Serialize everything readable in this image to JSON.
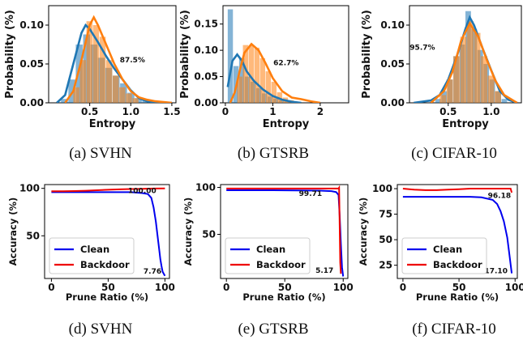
{
  "chart_data": [
    {
      "type": "histogram",
      "caption": "(a) SVHN",
      "xlabel": "Entropy",
      "ylabel": "Probability (%)",
      "xlim": [
        0.0,
        1.55
      ],
      "ylim": [
        0,
        0.125
      ],
      "xticks": [
        0.5,
        1.0,
        1.5
      ],
      "xtick_labels": [
        "0.5",
        "1.0",
        "1.5"
      ],
      "yticks": [
        0.0,
        0.05,
        0.1
      ],
      "ytick_labels": [
        "0.00",
        "0.05",
        "0.10"
      ],
      "annotation": {
        "text": "87.5%",
        "x": 1.02,
        "y": 0.052
      },
      "series": [
        {
          "color": "#1f77b4",
          "bins": [
            [
              0.15,
              0.24,
              0.005
            ],
            [
              0.24,
              0.33,
              0.03
            ],
            [
              0.33,
              0.42,
              0.075
            ],
            [
              0.42,
              0.51,
              0.088
            ],
            [
              0.51,
              0.6,
              0.075
            ],
            [
              0.6,
              0.69,
              0.058
            ],
            [
              0.69,
              0.78,
              0.045
            ],
            [
              0.78,
              0.87,
              0.035
            ],
            [
              0.87,
              0.96,
              0.025
            ],
            [
              0.96,
              1.05,
              0.013
            ],
            [
              1.05,
              1.14,
              0.006
            ],
            [
              1.14,
              1.23,
              0.003
            ]
          ],
          "kde": [
            [
              0.1,
              0.0
            ],
            [
              0.2,
              0.01
            ],
            [
              0.3,
              0.05
            ],
            [
              0.4,
              0.09
            ],
            [
              0.45,
              0.1
            ],
            [
              0.5,
              0.095
            ],
            [
              0.6,
              0.078
            ],
            [
              0.7,
              0.06
            ],
            [
              0.8,
              0.044
            ],
            [
              0.9,
              0.03
            ],
            [
              1.0,
              0.016
            ],
            [
              1.1,
              0.006
            ],
            [
              1.2,
              0.002
            ],
            [
              1.3,
              0.0005
            ],
            [
              1.5,
              0.0
            ]
          ]
        },
        {
          "color": "#ff7f0e",
          "bins": [
            [
              0.3,
              0.38,
              0.02
            ],
            [
              0.38,
              0.46,
              0.055
            ],
            [
              0.46,
              0.54,
              0.105
            ],
            [
              0.54,
              0.62,
              0.1
            ],
            [
              0.62,
              0.7,
              0.085
            ],
            [
              0.7,
              0.78,
              0.055
            ],
            [
              0.78,
              0.86,
              0.035
            ],
            [
              0.86,
              0.94,
              0.02
            ],
            [
              0.94,
              1.02,
              0.012
            ],
            [
              1.02,
              1.1,
              0.006
            ]
          ],
          "kde": [
            [
              0.2,
              0.0
            ],
            [
              0.3,
              0.015
            ],
            [
              0.4,
              0.055
            ],
            [
              0.5,
              0.1
            ],
            [
              0.55,
              0.11
            ],
            [
              0.6,
              0.1
            ],
            [
              0.7,
              0.075
            ],
            [
              0.8,
              0.05
            ],
            [
              0.9,
              0.03
            ],
            [
              1.0,
              0.015
            ],
            [
              1.1,
              0.007
            ],
            [
              1.2,
              0.004
            ],
            [
              1.3,
              0.002
            ],
            [
              1.5,
              0.0
            ]
          ]
        }
      ]
    },
    {
      "type": "histogram",
      "caption": "(b) GTSRB",
      "xlabel": "Entropy",
      "ylabel": "Probability (%)",
      "xlim": [
        -0.05,
        2.6
      ],
      "ylim": [
        0,
        0.185
      ],
      "xticks": [
        0,
        1,
        2
      ],
      "xtick_labels": [
        "0",
        "1",
        "2"
      ],
      "yticks": [
        0.0,
        0.05,
        0.1,
        0.15
      ],
      "ytick_labels": [
        "0.00",
        "0.05",
        "0.10",
        "0.15"
      ],
      "annotation": {
        "text": "62.7%",
        "x": 1.28,
        "y": 0.072
      },
      "series": [
        {
          "color": "#1f77b4",
          "bins": [
            [
              0.05,
              0.17,
              0.178
            ],
            [
              0.17,
              0.29,
              0.07
            ],
            [
              0.29,
              0.41,
              0.085
            ],
            [
              0.41,
              0.53,
              0.05
            ],
            [
              0.53,
              0.65,
              0.04
            ],
            [
              0.65,
              0.77,
              0.028
            ],
            [
              0.77,
              0.89,
              0.018
            ],
            [
              0.89,
              1.01,
              0.012
            ],
            [
              1.01,
              1.13,
              0.008
            ],
            [
              1.13,
              1.25,
              0.005
            ],
            [
              1.25,
              1.37,
              0.003
            ]
          ],
          "kde": [
            [
              0.05,
              0.03
            ],
            [
              0.15,
              0.08
            ],
            [
              0.25,
              0.092
            ],
            [
              0.35,
              0.08
            ],
            [
              0.45,
              0.06
            ],
            [
              0.6,
              0.042
            ],
            [
              0.8,
              0.025
            ],
            [
              1.0,
              0.013
            ],
            [
              1.2,
              0.006
            ],
            [
              1.4,
              0.002
            ],
            [
              1.6,
              0.0
            ]
          ]
        },
        {
          "color": "#ff7f0e",
          "bins": [
            [
              0.25,
              0.37,
              0.05
            ],
            [
              0.37,
              0.49,
              0.11
            ],
            [
              0.49,
              0.61,
              0.11
            ],
            [
              0.61,
              0.73,
              0.105
            ],
            [
              0.73,
              0.85,
              0.085
            ],
            [
              0.85,
              0.97,
              0.06
            ],
            [
              0.97,
              1.09,
              0.04
            ],
            [
              1.09,
              1.21,
              0.02
            ],
            [
              1.21,
              1.33,
              0.01
            ],
            [
              1.33,
              1.45,
              0.005
            ]
          ],
          "kde": [
            [
              0.1,
              0.0
            ],
            [
              0.2,
              0.02
            ],
            [
              0.3,
              0.06
            ],
            [
              0.4,
              0.095
            ],
            [
              0.55,
              0.112
            ],
            [
              0.7,
              0.1
            ],
            [
              0.85,
              0.075
            ],
            [
              1.0,
              0.047
            ],
            [
              1.2,
              0.022
            ],
            [
              1.4,
              0.01
            ],
            [
              1.6,
              0.007
            ],
            [
              1.8,
              0.003
            ],
            [
              2.0,
              0.0
            ]
          ]
        }
      ]
    },
    {
      "type": "histogram",
      "caption": "(c) CIFAR-10",
      "xlabel": "Entropy",
      "ylabel": "Probability (%)",
      "xlim": [
        0.05,
        1.35
      ],
      "ylim": [
        0,
        0.125
      ],
      "xticks": [
        0.5,
        1.0
      ],
      "xtick_labels": [
        "0.5",
        "1.0"
      ],
      "yticks": [
        0.0,
        0.05,
        0.1
      ],
      "ytick_labels": [
        "0.00",
        "0.05",
        "0.10"
      ],
      "annotation": {
        "text": "95.7%",
        "x": 0.2,
        "y": 0.068
      },
      "series": [
        {
          "color": "#1f77b4",
          "bins": [
            [
              0.35,
              0.42,
              0.005
            ],
            [
              0.42,
              0.49,
              0.015
            ],
            [
              0.49,
              0.56,
              0.03
            ],
            [
              0.56,
              0.63,
              0.06
            ],
            [
              0.63,
              0.7,
              0.075
            ],
            [
              0.7,
              0.77,
              0.118
            ],
            [
              0.77,
              0.84,
              0.095
            ],
            [
              0.84,
              0.91,
              0.068
            ],
            [
              0.91,
              0.98,
              0.05
            ],
            [
              0.98,
              1.05,
              0.03
            ],
            [
              1.05,
              1.12,
              0.015
            ],
            [
              1.12,
              1.19,
              0.005
            ]
          ],
          "kde": [
            [
              0.1,
              0.0
            ],
            [
              0.3,
              0.003
            ],
            [
              0.4,
              0.01
            ],
            [
              0.5,
              0.03
            ],
            [
              0.6,
              0.06
            ],
            [
              0.7,
              0.095
            ],
            [
              0.75,
              0.11
            ],
            [
              0.8,
              0.1
            ],
            [
              0.9,
              0.07
            ],
            [
              1.0,
              0.042
            ],
            [
              1.1,
              0.015
            ],
            [
              1.2,
              0.004
            ],
            [
              1.3,
              0.0
            ]
          ]
        },
        {
          "color": "#ff7f0e",
          "bins": [
            [
              0.4,
              0.48,
              0.01
            ],
            [
              0.48,
              0.56,
              0.03
            ],
            [
              0.56,
              0.64,
              0.06
            ],
            [
              0.64,
              0.72,
              0.085
            ],
            [
              0.72,
              0.8,
              0.105
            ],
            [
              0.8,
              0.88,
              0.09
            ],
            [
              0.88,
              0.96,
              0.06
            ],
            [
              0.96,
              1.04,
              0.035
            ],
            [
              1.04,
              1.12,
              0.015
            ]
          ],
          "kde": [
            [
              0.3,
              0.0
            ],
            [
              0.45,
              0.015
            ],
            [
              0.55,
              0.04
            ],
            [
              0.65,
              0.08
            ],
            [
              0.75,
              0.102
            ],
            [
              0.85,
              0.085
            ],
            [
              0.95,
              0.055
            ],
            [
              1.05,
              0.028
            ],
            [
              1.15,
              0.01
            ],
            [
              1.3,
              0.0
            ]
          ]
        }
      ]
    },
    {
      "type": "line",
      "caption": "(d) SVHN",
      "xlabel": "Prune Ratio (%)",
      "ylabel": "Accuracy (%)",
      "xlim": [
        -6,
        104
      ],
      "ylim": [
        5,
        104
      ],
      "xticks": [
        0,
        50,
        100
      ],
      "yticks": [
        50,
        100
      ],
      "legend": {
        "position": "lower-left",
        "entries": [
          "Clean",
          "Backdoor"
        ]
      },
      "annotations": [
        {
          "text": "100.00",
          "x": 80,
          "y": 95
        },
        {
          "text": "7.76",
          "x": 89,
          "y": 10
        }
      ],
      "series": [
        {
          "name": "Clean",
          "color": "#0000ee",
          "x": [
            0,
            10,
            20,
            30,
            40,
            50,
            60,
            70,
            80,
            85,
            88,
            90,
            92,
            94,
            95,
            96,
            97,
            98,
            100
          ],
          "y": [
            96,
            96,
            96,
            96,
            96,
            96,
            96,
            96,
            95,
            94,
            90,
            80,
            65,
            45,
            35,
            25,
            18,
            12,
            7.76
          ]
        },
        {
          "name": "Backdoor",
          "color": "#ee0000",
          "x": [
            0,
            10,
            20,
            30,
            40,
            50,
            60,
            70,
            80,
            90,
            100
          ],
          "y": [
            97,
            97,
            97.2,
            97.5,
            98,
            98.5,
            99,
            99.3,
            99.6,
            99.8,
            100
          ]
        }
      ]
    },
    {
      "type": "line",
      "caption": "(e) GTSRB",
      "xlabel": "Prune Ratio (%)",
      "ylabel": "Accuracy (%)",
      "xlim": [
        -5,
        104
      ],
      "ylim": [
        3,
        103
      ],
      "xticks": [
        0,
        50,
        100
      ],
      "yticks": [
        50,
        100
      ],
      "legend": {
        "position": "lower-left",
        "entries": [
          "Clean",
          "Backdoor"
        ]
      },
      "annotations": [
        {
          "text": "99.71",
          "x": 72,
          "y": 91
        },
        {
          "text": "5.17",
          "x": 84,
          "y": 9
        }
      ],
      "series": [
        {
          "name": "Clean",
          "color": "#0000ee",
          "x": [
            0,
            20,
            40,
            60,
            80,
            90,
            94,
            96,
            97,
            98,
            99,
            100
          ],
          "y": [
            97,
            97,
            97,
            96.8,
            96.5,
            96,
            95,
            92,
            70,
            40,
            15,
            5.17
          ]
        },
        {
          "name": "Backdoor",
          "color": "#ee0000",
          "x": [
            0,
            20,
            40,
            60,
            80,
            90,
            95,
            96,
            96.5,
            97,
            97.5,
            98
          ],
          "y": [
            98.8,
            98.8,
            98.8,
            98.8,
            98.8,
            98.8,
            98.8,
            98.8,
            99.71,
            60,
            20,
            8
          ]
        }
      ]
    },
    {
      "type": "line",
      "caption": "(f) CIFAR-10",
      "xlabel": "Prune Ratio (%)",
      "ylabel": "Accuracy (%)",
      "xlim": [
        -5,
        102
      ],
      "ylim": [
        12,
        104
      ],
      "xticks": [
        0,
        50,
        100
      ],
      "xtick_labels": [
        "0",
        "50",
        "100"
      ],
      "yticks": [
        25,
        50,
        75,
        100
      ],
      "legend": {
        "position": "lower-left",
        "entries": [
          "Clean",
          "Backdoor"
        ]
      },
      "annotations": [
        {
          "text": "96.18",
          "x": 86,
          "y": 91
        },
        {
          "text": "17.10",
          "x": 83,
          "y": 17
        }
      ],
      "series": [
        {
          "name": "Clean",
          "color": "#0000ee",
          "x": [
            0,
            20,
            40,
            60,
            70,
            80,
            84,
            87,
            90,
            93,
            95,
            97
          ],
          "y": [
            92,
            92,
            92,
            92,
            91.5,
            89,
            85,
            78,
            68,
            52,
            35,
            17.1
          ]
        },
        {
          "name": "Backdoor",
          "color": "#ee0000",
          "x": [
            0,
            10,
            20,
            30,
            40,
            50,
            60,
            70,
            80,
            90,
            96,
            97
          ],
          "y": [
            100,
            99,
            98.5,
            98.5,
            99,
            99.5,
            100,
            100,
            100,
            100,
            100,
            96.18
          ]
        }
      ]
    }
  ]
}
